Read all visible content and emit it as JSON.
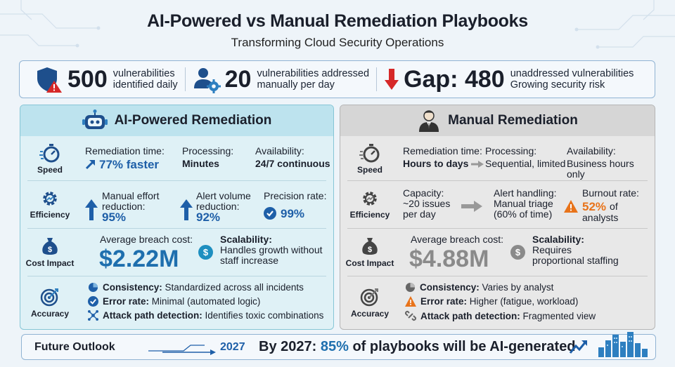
{
  "header": {
    "title": "AI-Powered vs Manual Remediation Playbooks",
    "subtitle": "Transforming Cloud Security Operations"
  },
  "stats": [
    {
      "value": "500",
      "line1": "vulnerabilities",
      "line2": "identified daily",
      "icon": "shield-warning-icon"
    },
    {
      "value": "20",
      "line1": "vulnerabilities addressed",
      "line2": "manually per day",
      "icon": "user-gear-icon"
    },
    {
      "value": "Gap: 480",
      "line1": "unaddressed vulnerabilities",
      "line2": "Growing security risk",
      "icon": "arrow-down-icon"
    }
  ],
  "ai": {
    "title": "AI-Powered Remediation",
    "speed": {
      "label": "Speed",
      "time_label": "Remediation time:",
      "time_value": "77% faster",
      "proc_label": "Processing:",
      "proc_value": "Minutes",
      "avail_label": "Availability:",
      "avail_value": "24/7 continuous"
    },
    "efficiency": {
      "label": "Efficiency",
      "manual_label_1": "Manual effort",
      "manual_label_2": "reduction:",
      "manual_value": "95%",
      "alert_label_1": "Alert volume",
      "alert_label_2": "reduction:",
      "alert_value": "92%",
      "precision_label": "Precision rate:",
      "precision_value": "99%"
    },
    "cost": {
      "label": "Cost Impact",
      "breach_label": "Average breach cost:",
      "breach_value": "$2.22M",
      "scal_label": "Scalability:",
      "scal_line1": "Handles growth without",
      "scal_line2": "staff increase"
    },
    "accuracy": {
      "label": "Accuracy",
      "consistency_label": "Consistency:",
      "consistency_value": "Standardized across all incidents",
      "error_label": "Error rate:",
      "error_value": "Minimal (automated logic)",
      "attack_label": "Attack path detection:",
      "attack_value": "Identifies toxic combinations"
    }
  },
  "manual": {
    "title": "Manual Remediation",
    "speed": {
      "label": "Speed",
      "time_label": "Remediation time:",
      "time_value": "Hours to days",
      "proc_label": "Processing:",
      "proc_value": "Sequential, limited",
      "avail_label": "Availability:",
      "avail_value": "Business hours only"
    },
    "efficiency": {
      "label": "Efficiency",
      "cap_label": "Capacity:",
      "cap_line1": "~20 issues",
      "cap_line2": "per day",
      "alert_label": "Alert handling:",
      "alert_line1": "Manual triage",
      "alert_line2": "(60% of time)",
      "burnout_label": "Burnout rate:",
      "burnout_value": "52%",
      "burnout_of": "of",
      "burnout_line2": "analysts"
    },
    "cost": {
      "label": "Cost Impact",
      "breach_label": "Average breach cost:",
      "breach_value": "$4.88M",
      "scal_label": "Scalability:",
      "scal_line1": "Requires",
      "scal_line2": "proportional staffing"
    },
    "accuracy": {
      "label": "Accuracy",
      "consistency_label": "Consistency:",
      "consistency_value": "Varies by analyst",
      "error_label": "Error rate:",
      "error_value": "Higher (fatigue, workload)",
      "attack_label": "Attack path detection:",
      "attack_value": "Fragmented view"
    }
  },
  "footer": {
    "label": "Future Outlook",
    "year": "2027",
    "text_prefix": "By 2027:",
    "text_highlight": "85%",
    "text_suffix": "of playbooks will be AI-generated"
  },
  "colors": {
    "accent_blue": "#1e5fa8",
    "ai_panel": "#dff1f6",
    "manual_panel": "#e8e8e8",
    "warning_red": "#d62828",
    "warning_orange": "#e8731a"
  }
}
